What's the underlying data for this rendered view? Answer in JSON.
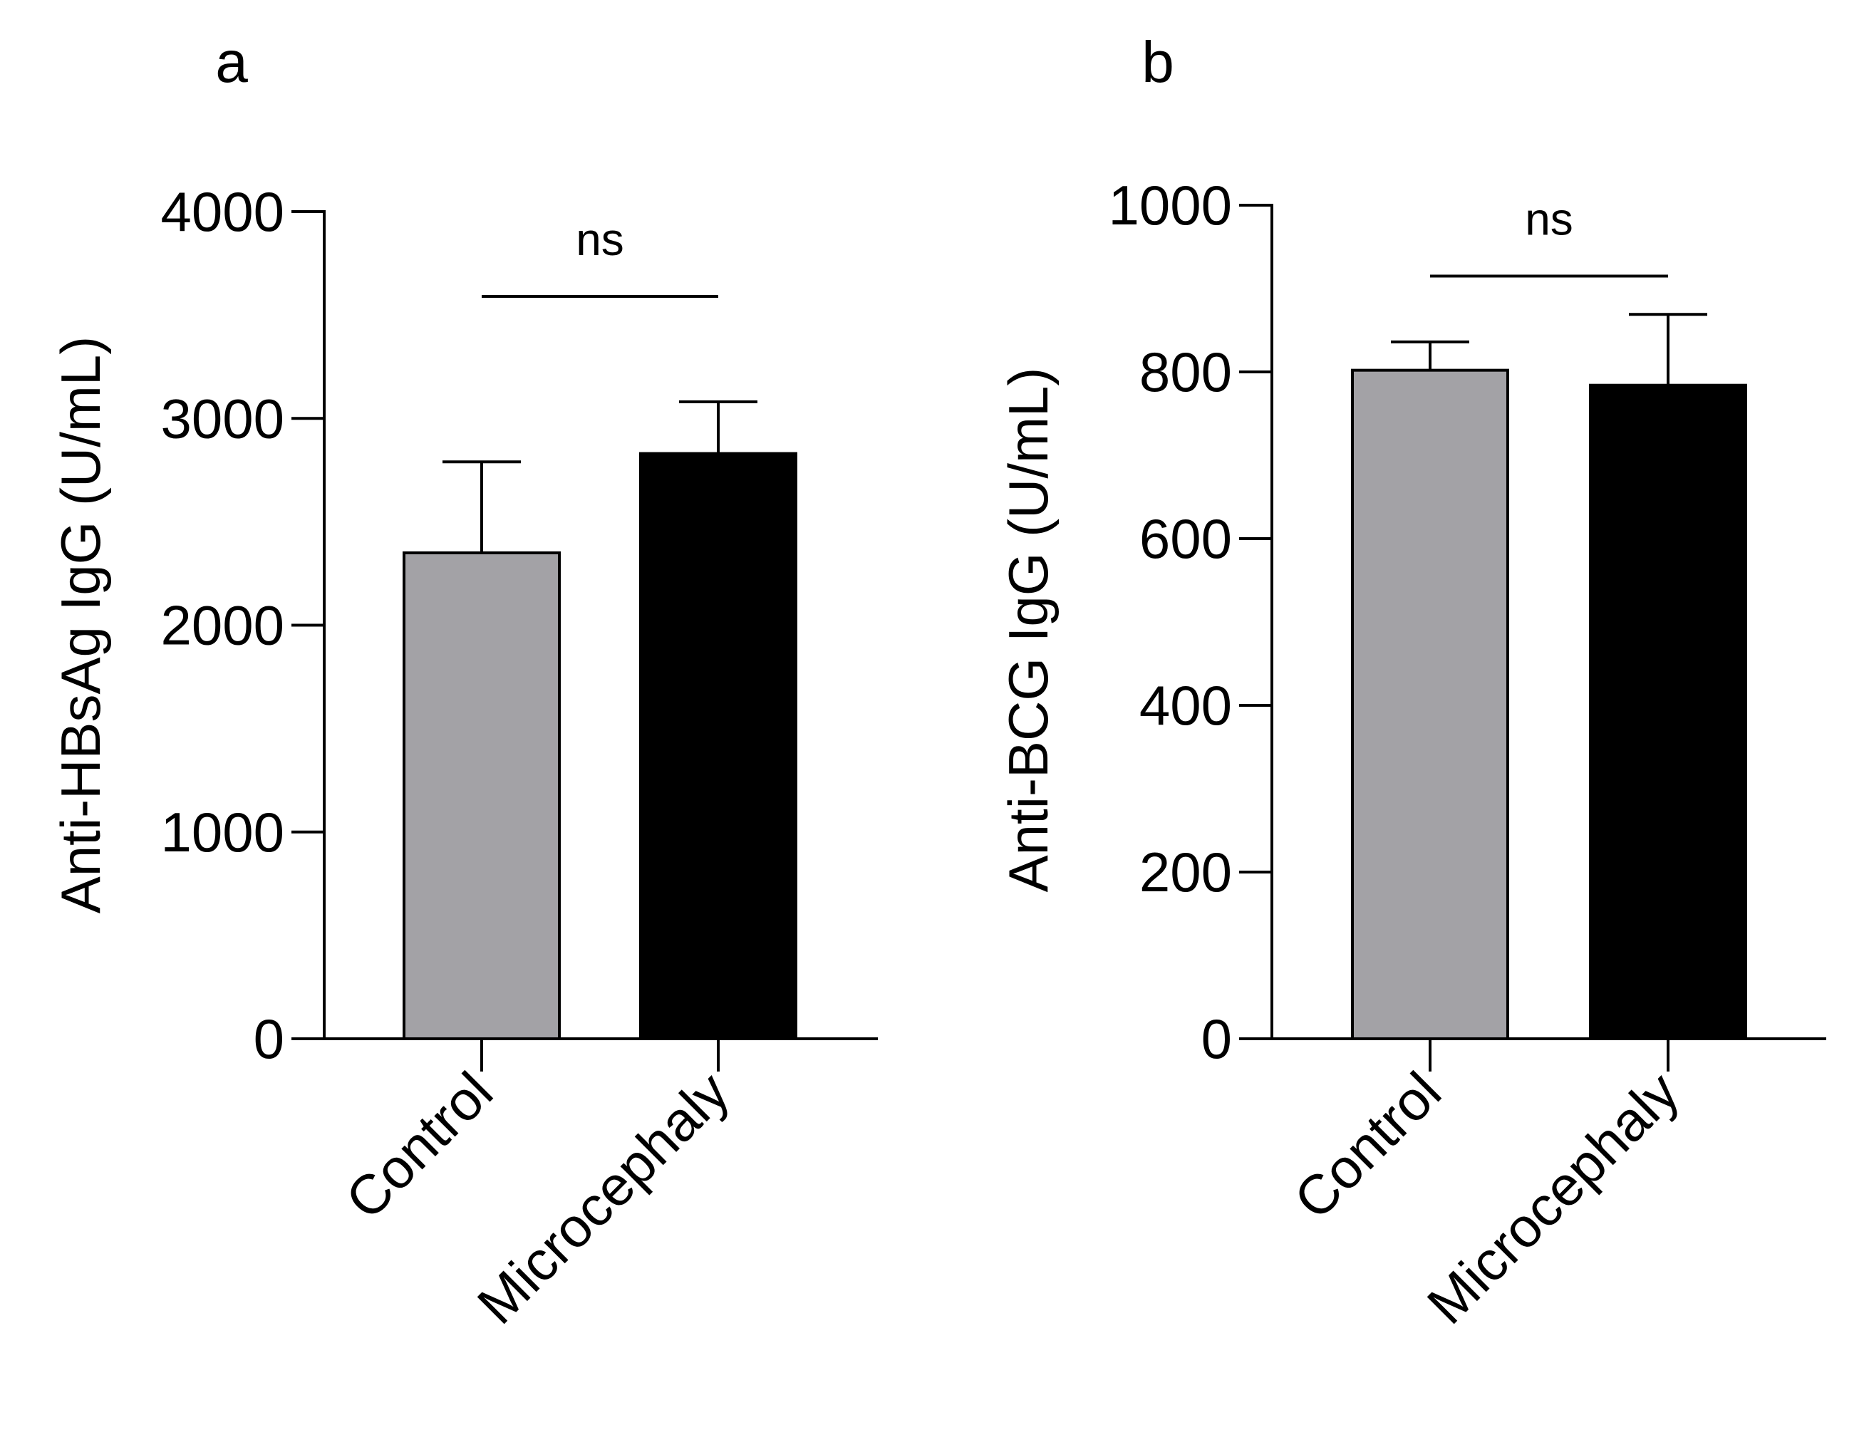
{
  "chart_data": [
    {
      "panel_label": "a",
      "type": "bar",
      "categories": [
        "Control",
        "Microcephaly"
      ],
      "values": [
        2350,
        2830
      ],
      "error_upper": [
        2790,
        3080
      ],
      "bar_colors": [
        "#a3a2a6",
        "#000000"
      ],
      "ylabel": "Anti-HBsAg IgG (U/mL)",
      "xlabel": "",
      "ylim": [
        0,
        4000
      ],
      "yticks": [
        0,
        1000,
        2000,
        3000,
        4000
      ],
      "ytick_labels": [
        "0",
        "1000",
        "2000",
        "3000",
        "4000"
      ],
      "significance": {
        "label": "ns",
        "between": [
          "Control",
          "Microcephaly"
        ],
        "level": 3590
      },
      "grid": false
    },
    {
      "panel_label": "b",
      "type": "bar",
      "categories": [
        "Control",
        "Microcephaly"
      ],
      "values": [
        802,
        784
      ],
      "error_upper": [
        836,
        869
      ],
      "bar_colors": [
        "#a3a2a6",
        "#000000"
      ],
      "ylabel": "Anti-BCG IgG (U/mL)",
      "xlabel": "",
      "ylim": [
        0,
        1000
      ],
      "yticks": [
        0,
        200,
        400,
        600,
        800,
        1000
      ],
      "ytick_labels": [
        "0",
        "200",
        "400",
        "600",
        "800",
        "1000"
      ],
      "significance": {
        "label": "ns",
        "between": [
          "Control",
          "Microcephaly"
        ],
        "level": 915
      },
      "grid": false
    }
  ]
}
